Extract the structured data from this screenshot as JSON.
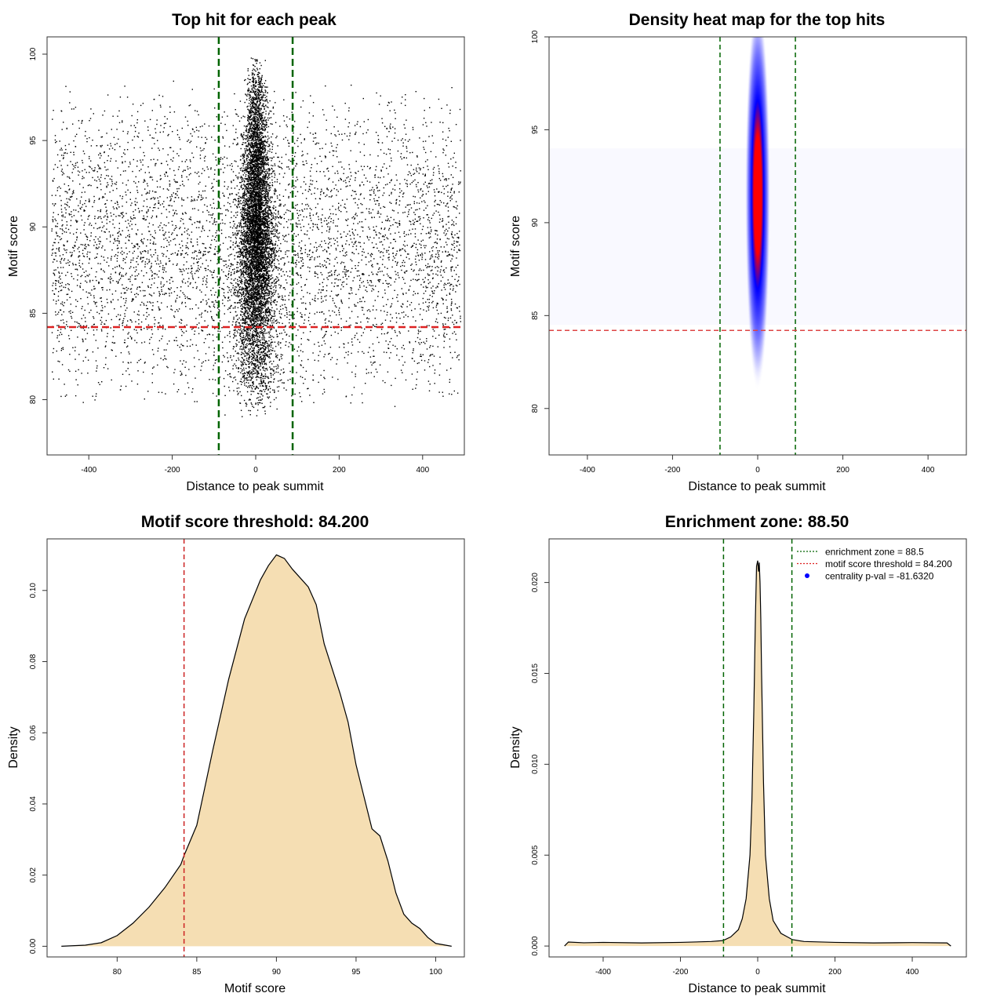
{
  "chart_data": [
    {
      "type": "scatter",
      "title": "Top hit for each peak",
      "xlabel": "Distance to peak summit",
      "ylabel": "Motif score",
      "xlim": [
        -500,
        500
      ],
      "ylim": [
        76.8,
        101
      ],
      "xticks": [
        -400,
        -200,
        0,
        200,
        400
      ],
      "yticks": [
        80,
        85,
        90,
        95,
        100
      ],
      "point_color": "#000000",
      "background": {
        "x_range": [
          -490,
          490
        ],
        "score_range": [
          79.5,
          98.5
        ],
        "score_mode": 88.5
      },
      "central_cluster": {
        "x_center": 0,
        "x_sd_at_low_score": 30,
        "x_sd_at_high_score": 10,
        "score_range": [
          79,
          100
        ],
        "score_mode": 90
      },
      "reference_lines": [
        {
          "orientation": "vertical",
          "value": -88.5,
          "color": "#006400",
          "style": "dashed"
        },
        {
          "orientation": "vertical",
          "value": 88.5,
          "color": "#006400",
          "style": "dashed"
        },
        {
          "orientation": "horizontal",
          "value": 84.2,
          "color": "#dd2222",
          "style": "dashed"
        }
      ]
    },
    {
      "type": "heatmap",
      "title": "Density heat map for the top hits",
      "xlabel": "Distance to peak summit",
      "ylabel": "Motif score",
      "xlim": [
        -490,
        490
      ],
      "ylim": [
        77.5,
        100
      ],
      "xticks": [
        -400,
        -200,
        0,
        200,
        400
      ],
      "yticks": [
        80,
        85,
        90,
        95,
        100
      ],
      "colors": [
        "#ffffff",
        "#0000ff",
        "#ff0000"
      ],
      "hotspot": {
        "x": 0,
        "y": 91.5,
        "x_sd": 9,
        "y_sd": 3.2
      },
      "reference_lines": [
        {
          "orientation": "vertical",
          "value": -88.5,
          "color": "#006400",
          "style": "dashed"
        },
        {
          "orientation": "vertical",
          "value": 88.5,
          "color": "#006400",
          "style": "dashed"
        },
        {
          "orientation": "horizontal",
          "value": 84.2,
          "color": "#dd4444",
          "style": "dashed"
        }
      ]
    },
    {
      "type": "area",
      "title": "Motif score threshold: 84.200",
      "xlabel": "Motif score",
      "ylabel": "Density",
      "xlim": [
        75.6,
        101.8
      ],
      "ylim": [
        -0.003,
        0.1145
      ],
      "xticks": [
        80,
        85,
        90,
        95,
        100
      ],
      "yticks": [
        0.0,
        0.02,
        0.04,
        0.06,
        0.08,
        0.1
      ],
      "ytick_labels": [
        "0.00",
        "0.02",
        "0.04",
        "0.06",
        "0.08",
        "0.10"
      ],
      "fill_color": "#f5deb3",
      "line_color": "#000000",
      "x": [
        76.5,
        78,
        79,
        80,
        81,
        82,
        83,
        84,
        84.2,
        85,
        86,
        87,
        88,
        89,
        89.5,
        90,
        90.5,
        91,
        92,
        92.5,
        93,
        94,
        94.5,
        95,
        95.5,
        96,
        96.5,
        97,
        97.5,
        98,
        98.5,
        99,
        99.5,
        100,
        101
      ],
      "values": [
        0.0,
        0.0003,
        0.001,
        0.003,
        0.0065,
        0.011,
        0.0165,
        0.023,
        0.0255,
        0.034,
        0.055,
        0.075,
        0.092,
        0.103,
        0.107,
        0.11,
        0.109,
        0.106,
        0.101,
        0.096,
        0.085,
        0.071,
        0.063,
        0.051,
        0.042,
        0.033,
        0.031,
        0.024,
        0.015,
        0.009,
        0.0065,
        0.005,
        0.0025,
        0.0008,
        0.0
      ],
      "reference_lines": [
        {
          "orientation": "vertical",
          "value": 84.2,
          "color": "#cc2222",
          "style": "dashed"
        }
      ]
    },
    {
      "type": "area",
      "title": "Enrichment zone: 88.50",
      "xlabel": "Distance to peak summit",
      "ylabel": "Density",
      "xlim": [
        -540,
        540
      ],
      "ylim": [
        -0.0006,
        0.0224
      ],
      "xticks": [
        -400,
        -200,
        0,
        200,
        400
      ],
      "yticks": [
        0.0,
        0.005,
        0.01,
        0.015,
        0.02
      ],
      "ytick_labels": [
        "0.000",
        "0.005",
        "0.010",
        "0.015",
        "0.020"
      ],
      "fill_color": "#f5deb3",
      "line_color": "#000000",
      "x": [
        -500,
        -490,
        -450,
        -400,
        -300,
        -200,
        -120,
        -90,
        -70,
        -50,
        -40,
        -30,
        -20,
        -15,
        -10,
        -6,
        -3,
        0,
        2,
        4,
        6,
        8,
        10,
        15,
        20,
        30,
        40,
        60,
        90,
        120,
        200,
        300,
        400,
        490,
        500
      ],
      "values": [
        0.0,
        0.00022,
        0.00018,
        0.0002,
        0.00017,
        0.0002,
        0.00025,
        0.0003,
        0.0005,
        0.0009,
        0.0015,
        0.0026,
        0.005,
        0.008,
        0.013,
        0.018,
        0.0209,
        0.0212,
        0.0206,
        0.0211,
        0.02,
        0.018,
        0.015,
        0.009,
        0.005,
        0.0026,
        0.0014,
        0.0007,
        0.00035,
        0.00025,
        0.0002,
        0.00017,
        0.00019,
        0.00017,
        0.0
      ],
      "reference_lines": [
        {
          "orientation": "vertical",
          "value": -88.5,
          "color": "#006400",
          "style": "dashed"
        },
        {
          "orientation": "vertical",
          "value": 88.5,
          "color": "#006400",
          "style": "dashed"
        }
      ],
      "legend": {
        "position": "top-right",
        "entries": [
          {
            "label": "enrichment zone = 88.5",
            "color": "#006400",
            "style": "dotted-line"
          },
          {
            "label": "motif score threshold = 84.200",
            "color": "#dd2222",
            "style": "dotted-line"
          },
          {
            "label": "centrality p-val = -81.6320",
            "color": "#0000ff",
            "style": "point"
          }
        ]
      }
    }
  ]
}
